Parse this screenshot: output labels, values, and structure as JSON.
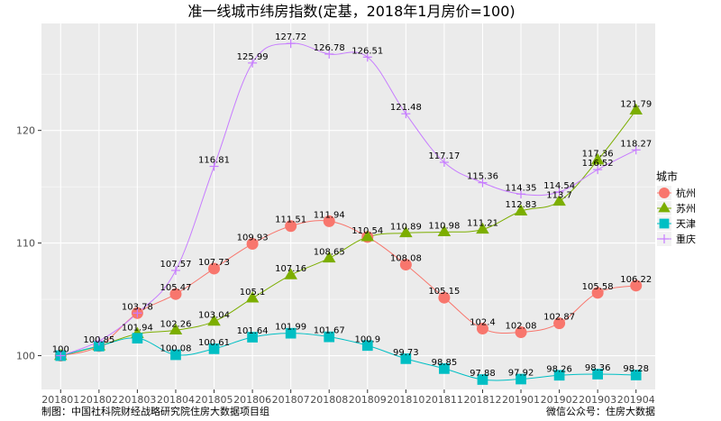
{
  "chart_data": {
    "type": "line",
    "title": "准一线城市纬房指数(定基，2018年1月房价=100)",
    "xlabel": "",
    "ylabel": "",
    "categories": [
      "201801",
      "201802",
      "201803",
      "201804",
      "201805",
      "201806",
      "201807",
      "201808",
      "201809",
      "201810",
      "201811",
      "201812",
      "201901",
      "201902",
      "201903",
      "201904"
    ],
    "yticks": [
      100,
      110,
      120
    ],
    "ylim": [
      97.0,
      129.5
    ],
    "grid": true,
    "legend_title": "城市",
    "legend_position": "right",
    "series": [
      {
        "name": "杭州",
        "color": "#F8766D",
        "marker": "circle",
        "values": [
          100,
          100.85,
          103.78,
          105.47,
          107.73,
          109.93,
          111.51,
          111.94,
          110.54,
          108.08,
          105.15,
          102.4,
          102.08,
          102.87,
          105.58,
          106.22
        ]
      },
      {
        "name": "苏州",
        "color": "#7CAE00",
        "marker": "triangle",
        "values": [
          100,
          100.85,
          101.94,
          102.26,
          103.04,
          105.1,
          107.16,
          108.65,
          110.54,
          110.89,
          110.98,
          111.21,
          112.83,
          113.7,
          117.36,
          121.79
        ]
      },
      {
        "name": "天津",
        "color": "#00BFC4",
        "marker": "square",
        "values": [
          100,
          100.85,
          101.55,
          100.08,
          100.61,
          101.64,
          101.99,
          101.67,
          100.9,
          99.73,
          98.85,
          97.88,
          97.92,
          98.26,
          98.36,
          98.28
        ]
      },
      {
        "name": "重庆",
        "color": "#C77CFF",
        "marker": "plus",
        "values": [
          100,
          101.3,
          103.78,
          107.57,
          116.81,
          125.99,
          127.72,
          126.78,
          126.51,
          121.48,
          117.17,
          115.36,
          114.35,
          114.54,
          116.52,
          118.27
        ]
      }
    ],
    "data_labels": [
      {
        "series": 0,
        "index": 0,
        "text": "100"
      },
      {
        "series": 0,
        "index": 1,
        "text": "100.85"
      },
      {
        "series": 0,
        "index": 2,
        "text": "103.78"
      },
      {
        "series": 0,
        "index": 3,
        "text": "105.47"
      },
      {
        "series": 0,
        "index": 4,
        "text": "107.73"
      },
      {
        "series": 0,
        "index": 5,
        "text": "109.93"
      },
      {
        "series": 0,
        "index": 6,
        "text": "111.51"
      },
      {
        "series": 0,
        "index": 7,
        "text": "111.94"
      },
      {
        "series": 0,
        "index": 8,
        "text": "110.54"
      },
      {
        "series": 0,
        "index": 9,
        "text": "108.08"
      },
      {
        "series": 0,
        "index": 10,
        "text": "105.15"
      },
      {
        "series": 0,
        "index": 11,
        "text": "102.4"
      },
      {
        "series": 0,
        "index": 12,
        "text": "102.08"
      },
      {
        "series": 0,
        "index": 13,
        "text": "102.87"
      },
      {
        "series": 0,
        "index": 14,
        "text": "105.58"
      },
      {
        "series": 0,
        "index": 15,
        "text": "106.22"
      },
      {
        "series": 1,
        "index": 2,
        "text": "101.94"
      },
      {
        "series": 1,
        "index": 3,
        "text": "102.26"
      },
      {
        "series": 1,
        "index": 4,
        "text": "103.04"
      },
      {
        "series": 1,
        "index": 5,
        "text": "105.1"
      },
      {
        "series": 1,
        "index": 6,
        "text": "107.16"
      },
      {
        "series": 1,
        "index": 7,
        "text": "108.65"
      },
      {
        "series": 1,
        "index": 9,
        "text": "110.89"
      },
      {
        "series": 1,
        "index": 10,
        "text": "110.98"
      },
      {
        "series": 1,
        "index": 11,
        "text": "111.21"
      },
      {
        "series": 1,
        "index": 12,
        "text": "112.83"
      },
      {
        "series": 1,
        "index": 13,
        "text": "113.7"
      },
      {
        "series": 1,
        "index": 14,
        "text": "117.36"
      },
      {
        "series": 1,
        "index": 15,
        "text": "121.79"
      },
      {
        "series": 2,
        "index": 3,
        "text": "100.08"
      },
      {
        "series": 2,
        "index": 4,
        "text": "100.61"
      },
      {
        "series": 2,
        "index": 5,
        "text": "101.64"
      },
      {
        "series": 2,
        "index": 6,
        "text": "101.99"
      },
      {
        "series": 2,
        "index": 7,
        "text": "101.67"
      },
      {
        "series": 2,
        "index": 8,
        "text": "100.9"
      },
      {
        "series": 2,
        "index": 9,
        "text": "99.73"
      },
      {
        "series": 2,
        "index": 10,
        "text": "98.85"
      },
      {
        "series": 2,
        "index": 11,
        "text": "97.88"
      },
      {
        "series": 2,
        "index": 12,
        "text": "97.92"
      },
      {
        "series": 2,
        "index": 13,
        "text": "98.26"
      },
      {
        "series": 2,
        "index": 14,
        "text": "98.36"
      },
      {
        "series": 2,
        "index": 15,
        "text": "98.28"
      },
      {
        "series": 3,
        "index": 3,
        "text": "107.57"
      },
      {
        "series": 3,
        "index": 4,
        "text": "116.81"
      },
      {
        "series": 3,
        "index": 5,
        "text": "125.99"
      },
      {
        "series": 3,
        "index": 6,
        "text": "127.72"
      },
      {
        "series": 3,
        "index": 7,
        "text": "126.78"
      },
      {
        "series": 3,
        "index": 8,
        "text": "126.51"
      },
      {
        "series": 3,
        "index": 9,
        "text": "121.48"
      },
      {
        "series": 3,
        "index": 10,
        "text": "117.17"
      },
      {
        "series": 3,
        "index": 11,
        "text": "115.36"
      },
      {
        "series": 3,
        "index": 12,
        "text": "114.35"
      },
      {
        "series": 3,
        "index": 13,
        "text": "114.54"
      },
      {
        "series": 3,
        "index": 14,
        "text": "116.52"
      },
      {
        "series": 3,
        "index": 15,
        "text": "118.27"
      }
    ]
  },
  "captions": {
    "left": "制图：中国社科院财经战略研究院住房大数据项目组",
    "right": "微信公众号：住房大数据"
  }
}
